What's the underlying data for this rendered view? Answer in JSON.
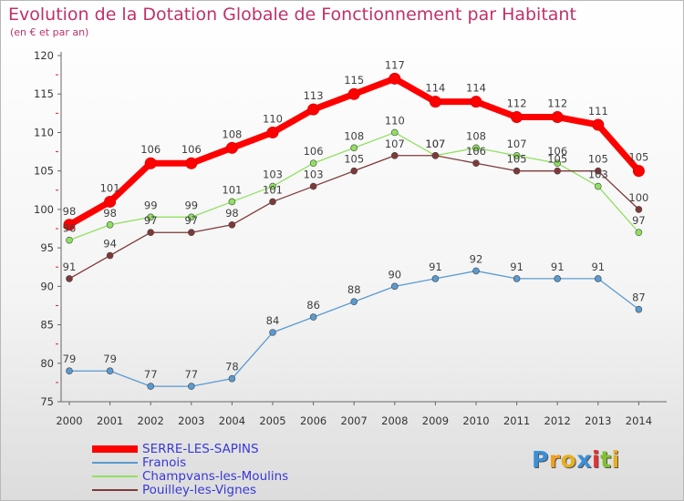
{
  "title": "Evolution de la Dotation Globale de Fonctionnement par Habitant",
  "subtitle": "(en € et par an)",
  "logo": {
    "letters": [
      "P",
      "r",
      "o",
      "x",
      "i",
      "t",
      "i"
    ],
    "colors": [
      "#3a8fd8",
      "#f0a020",
      "#e8b020",
      "#3a8fd8",
      "#e83030",
      "#80c030",
      "#e8b020"
    ]
  },
  "chart_data": {
    "type": "line",
    "title": "Evolution de la Dotation Globale de Fonctionnement par Habitant",
    "subtitle": "(en € et par an)",
    "x": [
      "2000",
      "2001",
      "2002",
      "2003",
      "2004",
      "2005",
      "2006",
      "2007",
      "2008",
      "2009",
      "2010",
      "2011",
      "2012",
      "2013",
      "2014"
    ],
    "ylim": [
      75,
      120
    ],
    "yticks": [
      "75",
      "80",
      "85",
      "90",
      "95",
      "100",
      "105",
      "110",
      "115",
      "120"
    ],
    "grid": false,
    "legend": "bottom-left",
    "series": [
      {
        "name": "SERRE-LES-SAPINS",
        "color": "#ff0000",
        "values": [
          98,
          101,
          106,
          106,
          108,
          110,
          113,
          115,
          117,
          114,
          114,
          112,
          112,
          111,
          105
        ]
      },
      {
        "name": "Franois",
        "color": "#5a9ad0",
        "values": [
          79,
          79,
          77,
          77,
          78,
          84,
          86,
          88,
          90,
          91,
          92,
          91,
          91,
          91,
          87
        ]
      },
      {
        "name": "Champvans-les-Moulins",
        "color": "#90e060",
        "values": [
          96,
          98,
          99,
          99,
          101,
          103,
          106,
          108,
          110,
          107,
          108,
          107,
          106,
          103,
          97
        ]
      },
      {
        "name": "Pouilley-les-Vignes",
        "color": "#803838",
        "values": [
          91,
          94,
          97,
          97,
          98,
          101,
          103,
          105,
          107,
          107,
          106,
          105,
          105,
          105,
          100
        ]
      }
    ]
  }
}
